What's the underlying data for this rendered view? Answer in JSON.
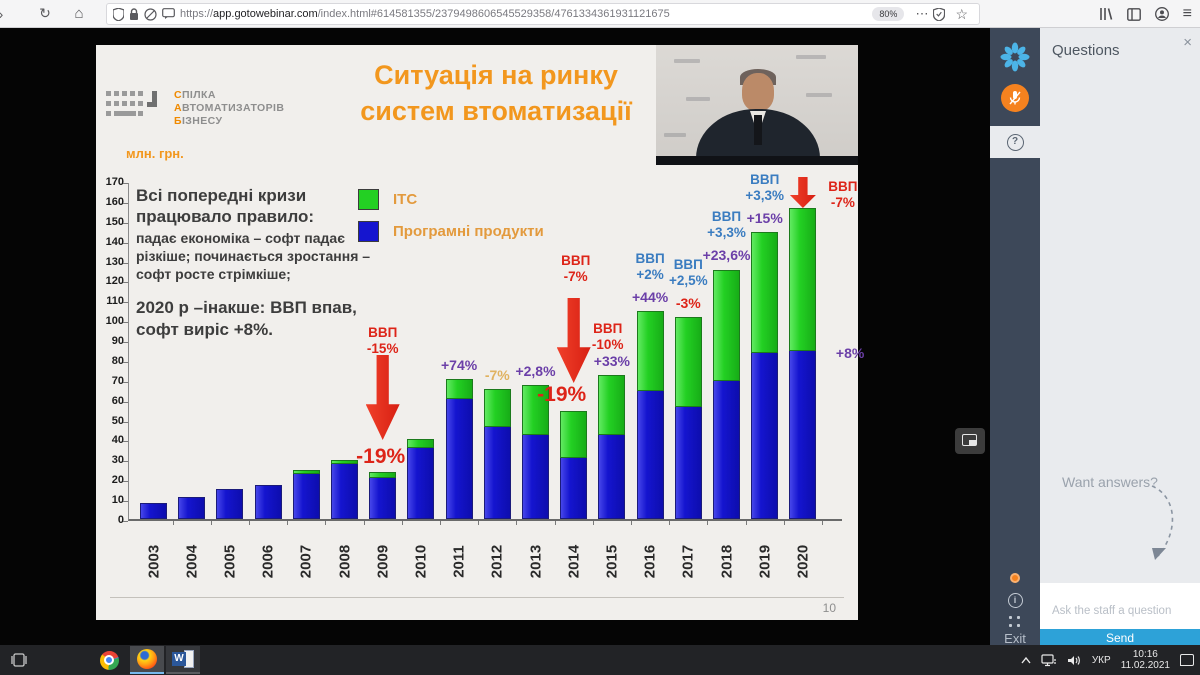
{
  "browser": {
    "url_prefix": "https://",
    "url_domain": "app.gotowebinar.com",
    "url_path": "/index.html#614581355/2379498606545529358/4761334361931121675",
    "zoom_badge": "80%",
    "reload_glyph": "↻",
    "home_glyph": "⌂",
    "more_glyph": "⋯",
    "star_glyph": "☆",
    "menu_glyph": "≡"
  },
  "slide": {
    "logo": {
      "line1_initial": "С",
      "line1_rest": "ПІЛКА",
      "line2_initial": "А",
      "line2_rest": "ВТОМАТИЗАТОРІВ",
      "line3_initial": "Б",
      "line3_rest": "ІЗНЕСУ"
    },
    "title_line1": "Ситуація на ринку",
    "title_line2": "систем втоматизації",
    "unit_label": "млн. грн.",
    "note_heading": "Всі попередні кризи працювало правило:",
    "note_body": "падає економіка – софт падає різкіше; починається зростання – софт росте стрімкіше;",
    "note_2020": "2020 р –інакше: ВВП впав, софт виріс +8%.",
    "page_number": "10"
  },
  "chart_data": {
    "type": "bar",
    "stacked": true,
    "title": "Ситуація на ринку систем втоматизації",
    "ylabel": "млн. грн.",
    "ylim": [
      0,
      170
    ],
    "y_step": 10,
    "grid": false,
    "legend_position": "top-center",
    "categories": [
      "2003",
      "2004",
      "2005",
      "2006",
      "2007",
      "2008",
      "2009",
      "2010",
      "2011",
      "2012",
      "2013",
      "2014",
      "2015",
      "2016",
      "2017",
      "2018",
      "2019",
      "2020"
    ],
    "series": [
      {
        "name": "ІТС",
        "color": "#23d023",
        "values": [
          0,
          0,
          0,
          0,
          2,
          2,
          3,
          5,
          10,
          19,
          25,
          24,
          30,
          40,
          45,
          56,
          61,
          72
        ]
      },
      {
        "name": "Програмні продукти",
        "color": "#1515cf",
        "values": [
          8,
          11,
          15,
          17,
          23,
          28,
          21,
          36,
          61,
          47,
          43,
          31,
          43,
          65,
          57,
          70,
          84,
          85
        ]
      }
    ],
    "annotations": [
      {
        "year": "2009",
        "gdp": "ВВП|-15%",
        "gdp_color": "#dd2418",
        "arrow": true,
        "growth": "-19%",
        "growth_color": "#dd2418",
        "big": true
      },
      {
        "year": "2011",
        "growth": "+74%",
        "growth_color": "#6b3fa8"
      },
      {
        "year": "2012",
        "growth": "-7%",
        "growth_color": "#e0b260"
      },
      {
        "year": "2013",
        "growth": "+2,8%",
        "growth_color": "#6b3fa8"
      },
      {
        "year": "2014",
        "gdp": "ВВП|-7%",
        "gdp_color": "#dd2418",
        "gdp2": "ВВП|-10%",
        "gdp2_color": "#dd2418",
        "arrow": true,
        "growth": "-19%",
        "growth_color": "#dd2418",
        "big": true
      },
      {
        "year": "2015",
        "growth": "+33%",
        "growth_color": "#6b3fa8"
      },
      {
        "year": "2016",
        "gdp": "ВВП|+2%",
        "gdp_color": "#3a7cc0",
        "growth": "+44%",
        "growth_color": "#6b3fa8"
      },
      {
        "year": "2017",
        "gdp": "ВВП|+2,5%",
        "gdp_color": "#3a7cc0",
        "growth": "-3%",
        "growth_color": "#dd2418"
      },
      {
        "year": "2018",
        "gdp": "ВВП|+3,3%",
        "gdp_color": "#3a7cc0",
        "growth": "+23,6%",
        "growth_color": "#6b3fa8"
      },
      {
        "year": "2019",
        "gdp": "ВВП|+3,3%",
        "gdp_color": "#3a7cc0",
        "growth": "+15%",
        "growth_color": "#6b3fa8"
      },
      {
        "year": "2020",
        "gdp": "ВВП|-7%",
        "gdp_color": "#dd2418",
        "arrow": true,
        "growth": "+8%",
        "growth_color": "#6b3fa8"
      }
    ]
  },
  "panel": {
    "title": "Questions",
    "close_glyph": "×",
    "question_tab_glyph": "?",
    "info_glyph": "i",
    "want_answers": "Want answers?",
    "placeholder": "Ask the staff a question",
    "send_label": "Send",
    "exit_label": "Exit",
    "accent_orange": "#f5821f",
    "send_blue": "#2da2d8"
  },
  "taskbar": {
    "language": "УКР",
    "time": "10:16",
    "date": "11.02.2021"
  }
}
